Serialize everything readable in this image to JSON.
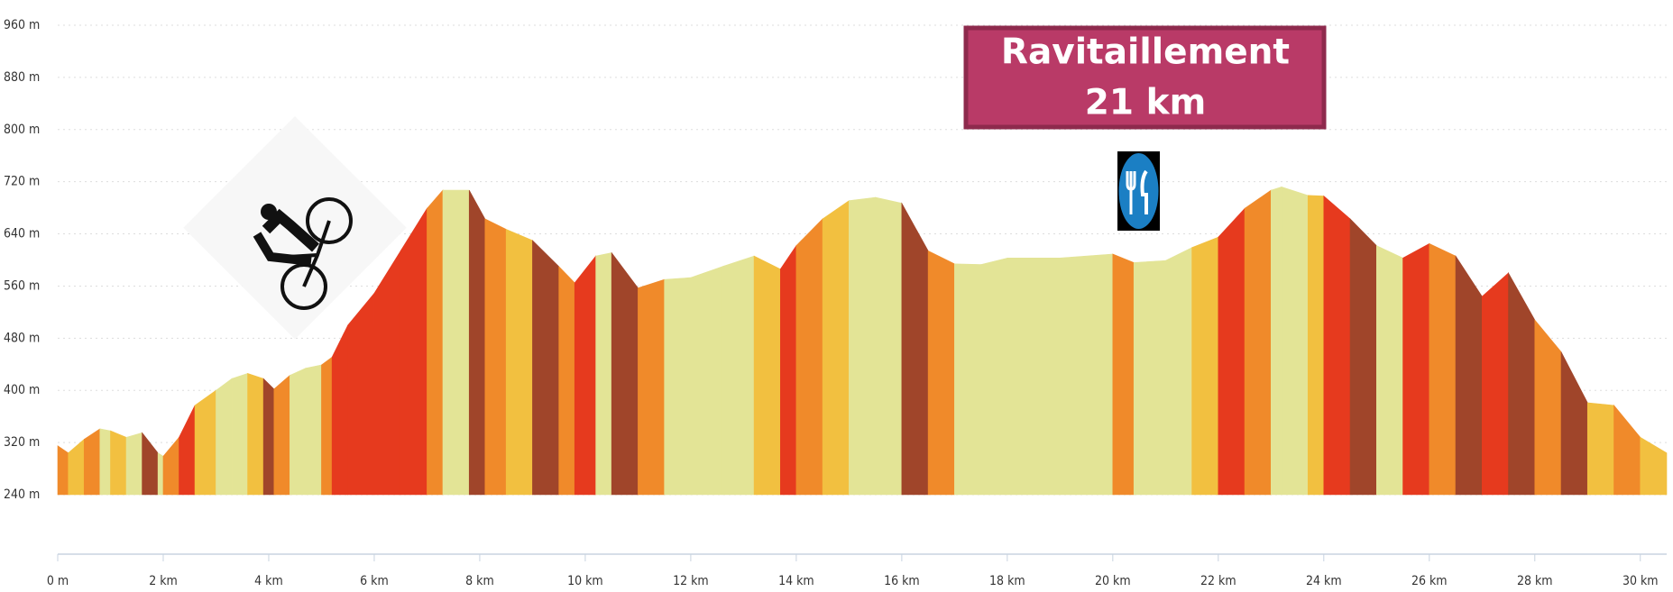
{
  "chart_data": {
    "type": "area",
    "x": [
      0,
      0.2,
      0.5,
      0.8,
      1.0,
      1.3,
      1.6,
      1.9,
      2.0,
      2.3,
      2.6,
      3.0,
      3.3,
      3.6,
      3.9,
      4.1,
      4.4,
      4.7,
      5.0,
      5.2,
      5.5,
      6.0,
      6.5,
      7.0,
      7.3,
      7.8,
      8.1,
      8.5,
      9.0,
      9.5,
      9.8,
      10.2,
      10.5,
      11.0,
      11.5,
      12.0,
      12.6,
      13.2,
      13.7,
      14.0,
      14.5,
      15.0,
      15.5,
      16.0,
      16.5,
      17.0,
      17.5,
      18.0,
      19.0,
      20.0,
      20.4,
      21.0,
      21.5,
      22.0,
      22.5,
      23.0,
      23.2,
      23.7,
      24.0,
      24.5,
      25.0,
      25.5,
      26.0,
      26.5,
      27.0,
      27.5,
      28.0,
      28.5,
      29.0,
      29.5,
      30.0,
      30.5
    ],
    "values": [
      315,
      304,
      325,
      341,
      338,
      328,
      335,
      304,
      299,
      328,
      377,
      400,
      418,
      426,
      418,
      402,
      423,
      434,
      439,
      451,
      500,
      549,
      614,
      679,
      707,
      707,
      663,
      647,
      630,
      590,
      565,
      606,
      611,
      557,
      570,
      573,
      590,
      606,
      586,
      622,
      663,
      691,
      696,
      687,
      614,
      594,
      593,
      603,
      603,
      609,
      596,
      599,
      619,
      635,
      679,
      707,
      712,
      699,
      698,
      663,
      622,
      603,
      625,
      606,
      544,
      580,
      508,
      459,
      381,
      377,
      328,
      304
    ],
    "segment_colors": [
      "#f08a2a",
      "#f2c040",
      "#f08a2a",
      "#e3e496",
      "#f2c040",
      "#e3e496",
      "#a0452a",
      "#e3e496",
      "#f08a2a",
      "#e63a1e",
      "#f2c040",
      "#e3e496",
      "#e3e496",
      "#f2c040",
      "#a0452a",
      "#f08a2a",
      "#e3e496",
      "#e3e496",
      "#f08a2a",
      "#e63a1e",
      "#e63a1e",
      "#e63a1e",
      "#e63a1e",
      "#f08a2a",
      "#e3e496",
      "#a0452a",
      "#f08a2a",
      "#f2c040",
      "#a0452a",
      "#f08a2a",
      "#e63a1e",
      "#e3e496",
      "#a0452a",
      "#f08a2a",
      "#e3e496",
      "#e3e496",
      "#e3e496",
      "#f2c040",
      "#e63a1e",
      "#f08a2a",
      "#f2c040",
      "#e3e496",
      "#e3e496",
      "#a0452a",
      "#f08a2a",
      "#e3e496",
      "#e3e496",
      "#e3e496",
      "#e3e496",
      "#f08a2a",
      "#e3e496",
      "#e3e496",
      "#f2c040",
      "#e63a1e",
      "#f08a2a",
      "#e3e496",
      "#e3e496",
      "#f2c040",
      "#e63a1e",
      "#a0452a",
      "#e3e496",
      "#e63a1e",
      "#f08a2a",
      "#a0452a",
      "#e63a1e",
      "#a0452a",
      "#f08a2a",
      "#a0452a",
      "#f2c040",
      "#f08a2a",
      "#f2c040"
    ],
    "xlim": [
      0,
      30.5
    ],
    "ylim": [
      240,
      960
    ],
    "xticks": [
      {
        "value": 0,
        "label": "0 m"
      },
      {
        "value": 2,
        "label": "2 km"
      },
      {
        "value": 4,
        "label": "4 km"
      },
      {
        "value": 6,
        "label": "6 km"
      },
      {
        "value": 8,
        "label": "8 km"
      },
      {
        "value": 10,
        "label": "10 km"
      },
      {
        "value": 12,
        "label": "12 km"
      },
      {
        "value": 14,
        "label": "14 km"
      },
      {
        "value": 16,
        "label": "16 km"
      },
      {
        "value": 18,
        "label": "18 km"
      },
      {
        "value": 20,
        "label": "20 km"
      },
      {
        "value": 22,
        "label": "22 km"
      },
      {
        "value": 24,
        "label": "24 km"
      },
      {
        "value": 26,
        "label": "26 km"
      },
      {
        "value": 28,
        "label": "28 km"
      },
      {
        "value": 30,
        "label": "30 km"
      }
    ],
    "yticks": [
      {
        "value": 240,
        "label": "240 m"
      },
      {
        "value": 320,
        "label": "320 m"
      },
      {
        "value": 400,
        "label": "400 m"
      },
      {
        "value": 480,
        "label": "480 m"
      },
      {
        "value": 560,
        "label": "560 m"
      },
      {
        "value": 640,
        "label": "640 m"
      },
      {
        "value": 720,
        "label": "720 m"
      },
      {
        "value": 800,
        "label": "800 m"
      },
      {
        "value": 880,
        "label": "880 m"
      },
      {
        "value": 960,
        "label": "960 m"
      }
    ],
    "grid": true,
    "annotation": [
      "Ravitaillement",
      "21 km"
    ]
  }
}
